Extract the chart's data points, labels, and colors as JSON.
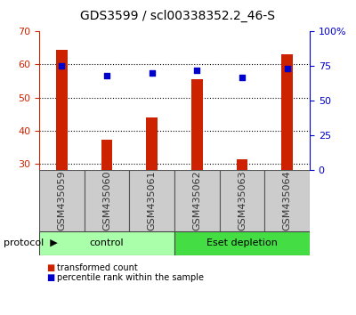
{
  "title": "GDS3599 / scl00338352.2_46-S",
  "samples": [
    "GSM435059",
    "GSM435060",
    "GSM435061",
    "GSM435062",
    "GSM435063",
    "GSM435064"
  ],
  "transformed_count": [
    64.5,
    37.2,
    44.0,
    55.5,
    31.2,
    63.2
  ],
  "percentile_rank": [
    75,
    68,
    70,
    72,
    67,
    73
  ],
  "ylim_left": [
    28,
    70
  ],
  "ylim_right": [
    0,
    100
  ],
  "yticks_left": [
    30,
    40,
    50,
    60,
    70
  ],
  "yticks_right": [
    0,
    25,
    50,
    75,
    100
  ],
  "ytick_labels_right": [
    "0",
    "25",
    "50",
    "75",
    "100%"
  ],
  "bar_color": "#cc2200",
  "dot_color": "#0000cc",
  "protocol_labels": [
    "control",
    "Eset depletion"
  ],
  "protocol_colors_light": "#aaffaa",
  "protocol_colors_dark": "#44dd44",
  "protocol_label": "protocol",
  "legend_items": [
    "transformed count",
    "percentile rank within the sample"
  ],
  "tick_fontsize": 8,
  "label_fontsize": 8,
  "title_fontsize": 10,
  "bar_width": 0.25,
  "sample_label_color": "#333333",
  "left_axis_color": "#cc2200",
  "right_axis_color": "#0000cc",
  "xtick_bg_color": "#cccccc"
}
